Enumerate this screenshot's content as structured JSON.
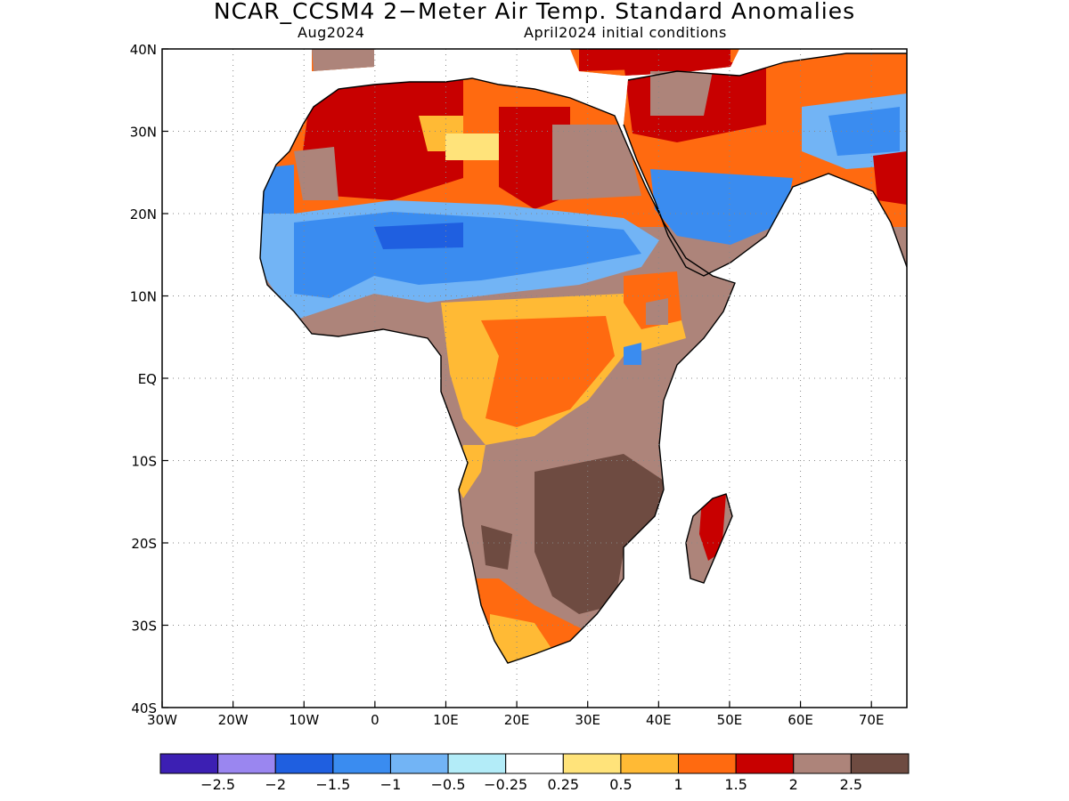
{
  "title": "NCAR_CCSM4 2−Meter Air Temp. Standard Anomalies",
  "subtitle_left": "Aug2024",
  "subtitle_right": "April2024 initial conditions",
  "map": {
    "lon_range": [
      -30,
      75
    ],
    "lat_range": [
      -40,
      40
    ],
    "x_ticks": [
      "30W",
      "20W",
      "10W",
      "0",
      "10E",
      "20E",
      "30E",
      "40E",
      "50E",
      "60E",
      "70E"
    ],
    "y_ticks": [
      "40N",
      "30N",
      "20N",
      "10N",
      "EQ",
      "10S",
      "20S",
      "30S",
      "40S"
    ],
    "grid": "dotted"
  },
  "colorbar": {
    "colors": [
      "#3c1fb3",
      "#9a86f0",
      "#1f5fe0",
      "#3a8cf0",
      "#72b4f5",
      "#b3ecf8",
      "#ffffff",
      "#ffe37a",
      "#ffba35",
      "#ff6a10",
      "#c80000",
      "#ad847a",
      "#6e4b41"
    ],
    "labels": [
      "−2.5",
      "−2",
      "−1.5",
      "−1",
      "−0.5",
      "−0.25",
      "0.25",
      "0.5",
      "1",
      "1.5",
      "2",
      "2.5"
    ]
  }
}
